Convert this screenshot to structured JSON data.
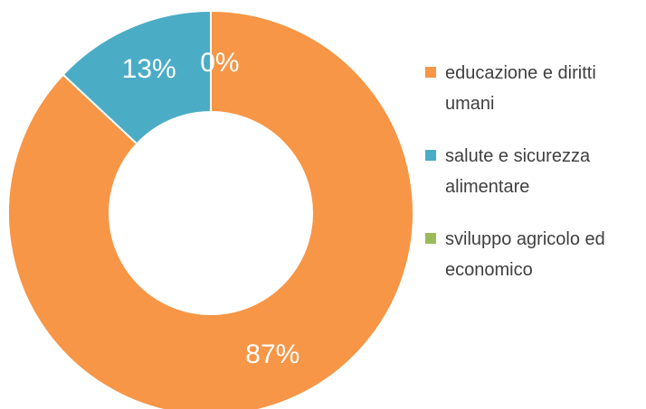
{
  "chart_data": {
    "type": "pie",
    "style": "donut",
    "title": "",
    "legend_position": "right",
    "slices": [
      {
        "label": "educazione e diritti umani",
        "value": 87,
        "display": "87%",
        "color": "#F79646"
      },
      {
        "label": "salute e sicurezza alimentare",
        "value": 13,
        "display": "13%",
        "color": "#4BACC6"
      },
      {
        "label": "sviluppo agricolo ed economico",
        "value": 0,
        "display": "0%",
        "color": "#9BBB59"
      }
    ]
  }
}
